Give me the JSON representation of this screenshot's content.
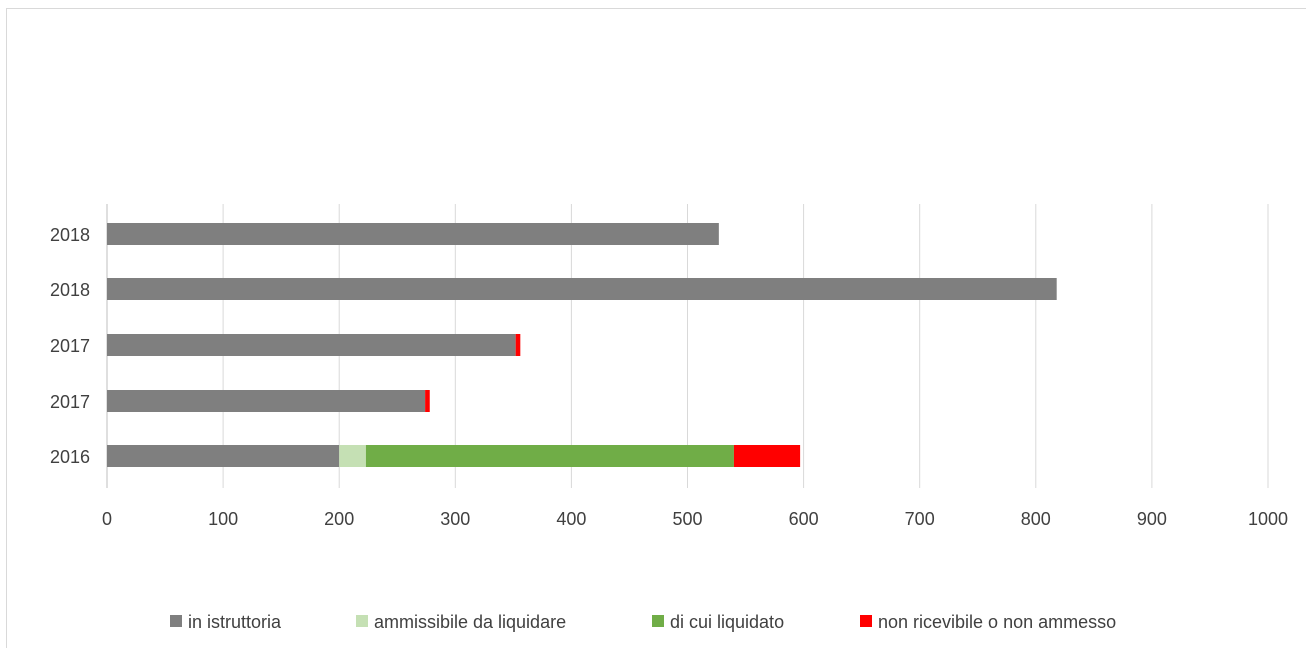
{
  "chart_data": {
    "type": "bar",
    "orientation": "horizontal",
    "stacked": true,
    "title": "",
    "xlabel": "",
    "ylabel": "",
    "xlim": [
      0,
      1000
    ],
    "x_ticks": [
      "0",
      "100",
      "200",
      "300",
      "400",
      "500",
      "600",
      "700",
      "800",
      "900",
      "1000"
    ],
    "grid": "vertical",
    "legend_position": "bottom",
    "categories": [
      "2018",
      "2018",
      "2017",
      "2017",
      "2016"
    ],
    "series": [
      {
        "name": "in istruttoria",
        "color": "#7f7f7f",
        "values": [
          527,
          818,
          352,
          274,
          200
        ]
      },
      {
        "name": "ammissibile da liquidare",
        "color": "#c5e0b4",
        "values": [
          0,
          0,
          0,
          0,
          23
        ]
      },
      {
        "name": "di cui liquidato",
        "color": "#70ad47",
        "values": [
          0,
          0,
          0,
          0,
          317
        ]
      },
      {
        "name": "non ricevibile o non ammesso",
        "color": "#ff0000",
        "values": [
          0,
          0,
          4,
          4,
          57
        ]
      }
    ]
  }
}
